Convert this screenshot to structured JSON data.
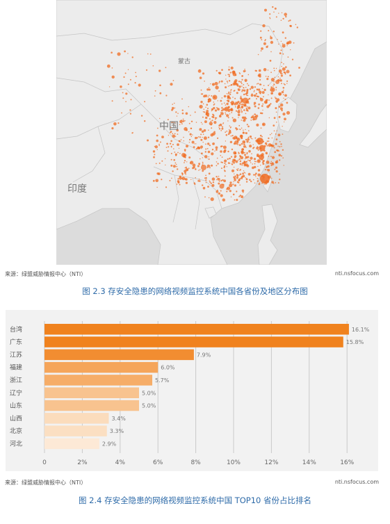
{
  "map": {
    "labels": {
      "mongolia": "蒙古",
      "china": "中国",
      "india": "印度"
    },
    "colors": {
      "land": "#ececec",
      "sea": "#dcdcdc",
      "dot": "#f06c22"
    },
    "source_left": "来源：绿盟威胁情报中心（NTI）",
    "source_right": "nti.nsfocus.com",
    "caption": "图 2.3 存安全隐患的网络视频监控系统中国各省份及地区分布图"
  },
  "chart_data": {
    "type": "bar",
    "orientation": "horizontal",
    "categories": [
      "台湾",
      "广东",
      "江苏",
      "福建",
      "浙江",
      "辽宁",
      "山东",
      "山西",
      "北京",
      "河北"
    ],
    "values": [
      16.1,
      15.8,
      7.9,
      6.0,
      5.7,
      5.0,
      5.0,
      3.4,
      3.3,
      2.9
    ],
    "value_labels": [
      "16.1%",
      "15.8%",
      "7.9%",
      "6.0%",
      "5.7%",
      "5.0%",
      "5.0%",
      "3.4%",
      "3.3%",
      "2.9%"
    ],
    "x_ticks": [
      "0",
      "2%",
      "4%",
      "6%",
      "8%",
      "10%",
      "12%",
      "14%",
      "16%"
    ],
    "xlim": [
      0,
      16
    ],
    "grid": true,
    "colors": [
      "#f0821e",
      "#f0821e",
      "#f28d31",
      "#f5a55a",
      "#f6ad68",
      "#f8c38f",
      "#f8c38f",
      "#fbdcbc",
      "#fbdfc2",
      "#fde9d6"
    ],
    "source_left": "来源：绿盟威胁情报中心（NTI）",
    "source_right": "nti.nsfocus.com",
    "caption": "图 2.4 存安全隐患的网络视频监控系统中国 TOP10 省份占比排名"
  }
}
